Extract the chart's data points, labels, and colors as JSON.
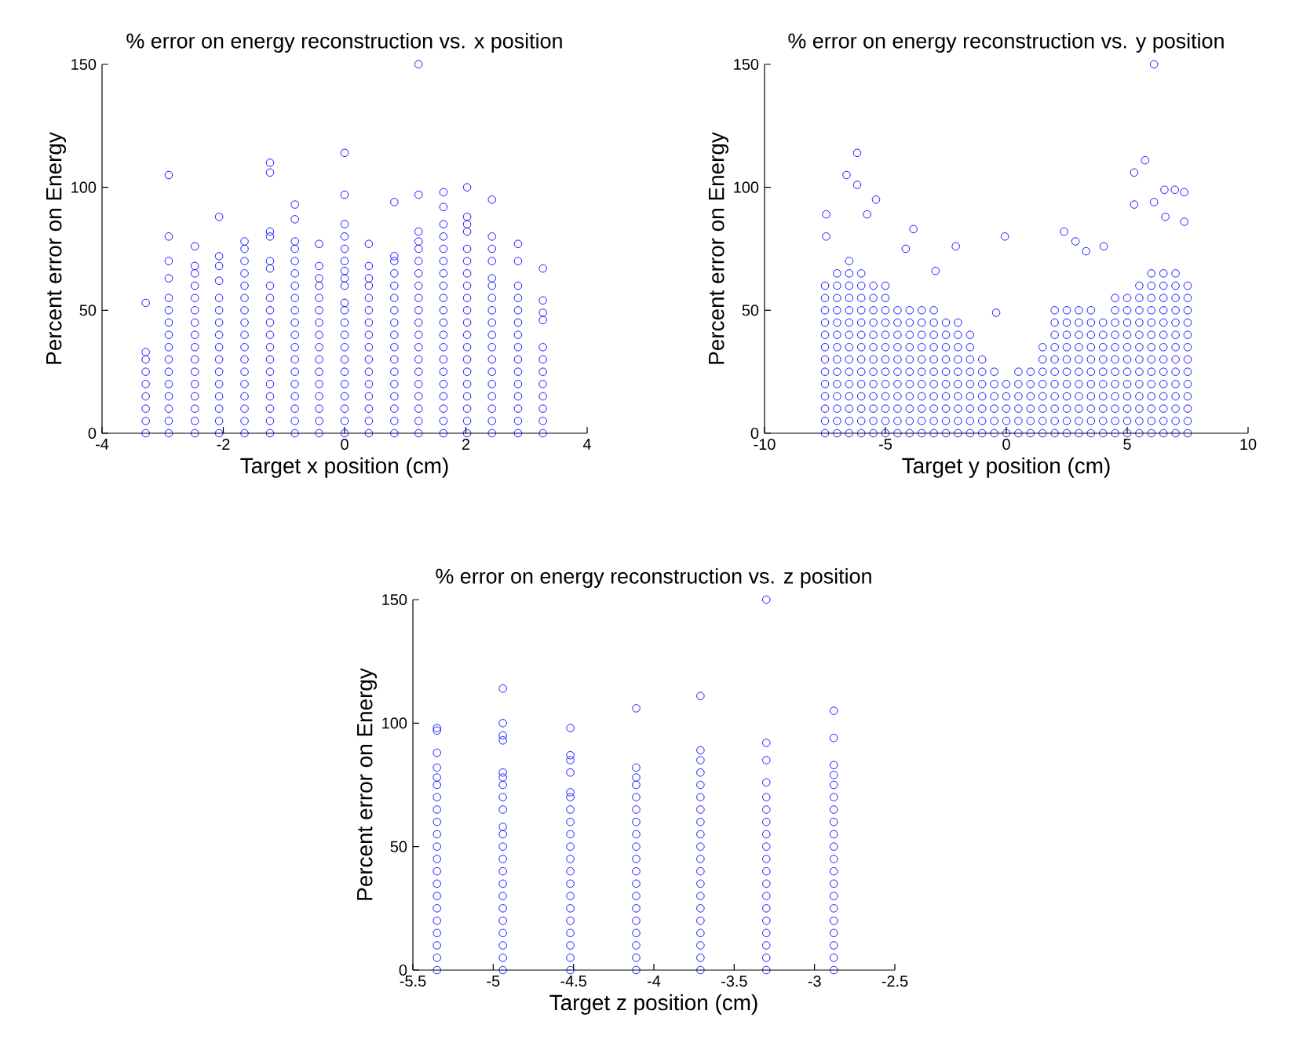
{
  "chart_data": [
    {
      "type": "scatter",
      "title": "% error on energy reconstruction vs. x position",
      "xlabel": "Target x position (cm)",
      "ylabel": "Percent error on Energy",
      "xlim": [
        -4,
        4
      ],
      "ylim": [
        0,
        150
      ],
      "xticks": [
        -4,
        -2,
        0,
        2,
        4
      ],
      "yticks": [
        0,
        50,
        100,
        150
      ],
      "marker": "circle",
      "series": [
        {
          "color": "#0000ff",
          "x": [
            -3.28,
            -3.28,
            -3.28,
            -3.28,
            -3.28,
            -3.28,
            -3.28,
            -3.28,
            -3.28
          ],
          "values": [
            0,
            5,
            10,
            15,
            20,
            25,
            30,
            33,
            53
          ]
        },
        {
          "color": "#0000ff",
          "x": [
            -2.9,
            -2.9,
            -2.9,
            -2.9,
            -2.9,
            -2.9,
            -2.9,
            -2.9,
            -2.9,
            -2.9,
            -2.9,
            -2.9,
            -2.9,
            -2.9,
            -2.9,
            -2.9
          ],
          "values": [
            0,
            5,
            10,
            15,
            20,
            25,
            30,
            35,
            40,
            45,
            50,
            55,
            63,
            70,
            80,
            105
          ]
        },
        {
          "color": "#0000ff",
          "x": [
            -2.47,
            -2.47,
            -2.47,
            -2.47,
            -2.47,
            -2.47,
            -2.47,
            -2.47,
            -2.47,
            -2.47,
            -2.47,
            -2.47,
            -2.47,
            -2.47,
            -2.47,
            -2.47
          ],
          "values": [
            0,
            5,
            10,
            15,
            20,
            25,
            30,
            35,
            40,
            45,
            50,
            55,
            60,
            65,
            68,
            76
          ]
        },
        {
          "color": "#0000ff",
          "x": [
            -2.07,
            -2.07,
            -2.07,
            -2.07,
            -2.07,
            -2.07,
            -2.07,
            -2.07,
            -2.07,
            -2.07,
            -2.07,
            -2.07,
            -2.07,
            -2.07,
            -2.07,
            -2.07
          ],
          "values": [
            0,
            5,
            10,
            15,
            20,
            25,
            30,
            35,
            40,
            45,
            50,
            55,
            62,
            68,
            72,
            88
          ]
        },
        {
          "color": "#0000ff",
          "x": [
            -1.65,
            -1.65,
            -1.65,
            -1.65,
            -1.65,
            -1.65,
            -1.65,
            -1.65,
            -1.65,
            -1.65,
            -1.65,
            -1.65,
            -1.65,
            -1.65,
            -1.65,
            -1.65,
            -1.65
          ],
          "values": [
            0,
            5,
            10,
            15,
            20,
            25,
            30,
            35,
            40,
            45,
            50,
            55,
            60,
            65,
            70,
            75,
            78
          ]
        },
        {
          "color": "#0000ff",
          "x": [
            -1.23,
            -1.23,
            -1.23,
            -1.23,
            -1.23,
            -1.23,
            -1.23,
            -1.23,
            -1.23,
            -1.23,
            -1.23,
            -1.23,
            -1.23,
            -1.23,
            -1.23,
            -1.23,
            -1.23,
            -1.23,
            -1.23
          ],
          "values": [
            0,
            5,
            10,
            15,
            20,
            25,
            30,
            35,
            40,
            45,
            50,
            55,
            60,
            67,
            70,
            80,
            82,
            106,
            110
          ]
        },
        {
          "color": "#0000ff",
          "x": [
            -0.82,
            -0.82,
            -0.82,
            -0.82,
            -0.82,
            -0.82,
            -0.82,
            -0.82,
            -0.82,
            -0.82,
            -0.82,
            -0.82,
            -0.82,
            -0.82,
            -0.82,
            -0.82,
            -0.82,
            -0.82,
            -0.82
          ],
          "values": [
            0,
            5,
            10,
            15,
            20,
            25,
            30,
            35,
            40,
            45,
            50,
            55,
            60,
            65,
            70,
            75,
            78,
            87,
            93
          ]
        },
        {
          "color": "#0000ff",
          "x": [
            -0.42,
            -0.42,
            -0.42,
            -0.42,
            -0.42,
            -0.42,
            -0.42,
            -0.42,
            -0.42,
            -0.42,
            -0.42,
            -0.42,
            -0.42,
            -0.42,
            -0.42,
            -0.42
          ],
          "values": [
            0,
            5,
            10,
            15,
            20,
            25,
            30,
            35,
            40,
            45,
            50,
            55,
            60,
            63,
            68,
            77
          ]
        },
        {
          "color": "#0000ff",
          "x": [
            0,
            0,
            0,
            0,
            0,
            0,
            0,
            0,
            0,
            0,
            0,
            0,
            0,
            0,
            0,
            0,
            0,
            0,
            0,
            0,
            0
          ],
          "values": [
            0,
            5,
            10,
            15,
            20,
            25,
            30,
            35,
            40,
            45,
            50,
            53,
            60,
            63,
            66,
            70,
            75,
            80,
            85,
            97,
            114
          ]
        },
        {
          "color": "#0000ff",
          "x": [
            0.4,
            0.4,
            0.4,
            0.4,
            0.4,
            0.4,
            0.4,
            0.4,
            0.4,
            0.4,
            0.4,
            0.4,
            0.4,
            0.4,
            0.4,
            0.4
          ],
          "values": [
            0,
            5,
            10,
            15,
            20,
            25,
            30,
            35,
            40,
            45,
            50,
            55,
            60,
            63,
            68,
            77
          ]
        },
        {
          "color": "#0000ff",
          "x": [
            0.82,
            0.82,
            0.82,
            0.82,
            0.82,
            0.82,
            0.82,
            0.82,
            0.82,
            0.82,
            0.82,
            0.82,
            0.82,
            0.82,
            0.82,
            0.82,
            0.82
          ],
          "values": [
            0,
            5,
            10,
            15,
            20,
            25,
            30,
            35,
            40,
            45,
            50,
            55,
            60,
            65,
            70,
            72,
            94
          ]
        },
        {
          "color": "#0000ff",
          "x": [
            1.22,
            1.22,
            1.22,
            1.22,
            1.22,
            1.22,
            1.22,
            1.22,
            1.22,
            1.22,
            1.22,
            1.22,
            1.22,
            1.22,
            1.22,
            1.22,
            1.22,
            1.22,
            1.22,
            1.22
          ],
          "values": [
            0,
            5,
            10,
            15,
            20,
            25,
            30,
            35,
            40,
            45,
            50,
            55,
            60,
            65,
            70,
            75,
            78,
            82,
            97,
            150
          ]
        },
        {
          "color": "#0000ff",
          "x": [
            1.63,
            1.63,
            1.63,
            1.63,
            1.63,
            1.63,
            1.63,
            1.63,
            1.63,
            1.63,
            1.63,
            1.63,
            1.63,
            1.63,
            1.63,
            1.63,
            1.63,
            1.63,
            1.63,
            1.63
          ],
          "values": [
            0,
            5,
            10,
            15,
            20,
            25,
            30,
            35,
            40,
            45,
            50,
            55,
            60,
            65,
            70,
            75,
            80,
            85,
            92,
            98
          ]
        },
        {
          "color": "#0000ff",
          "x": [
            2.02,
            2.02,
            2.02,
            2.02,
            2.02,
            2.02,
            2.02,
            2.02,
            2.02,
            2.02,
            2.02,
            2.02,
            2.02,
            2.02,
            2.02,
            2.02,
            2.02,
            2.02,
            2.02,
            2.02
          ],
          "values": [
            0,
            5,
            10,
            15,
            20,
            25,
            30,
            35,
            40,
            45,
            50,
            55,
            60,
            65,
            70,
            75,
            82,
            85,
            88,
            100
          ]
        },
        {
          "color": "#0000ff",
          "x": [
            2.43,
            2.43,
            2.43,
            2.43,
            2.43,
            2.43,
            2.43,
            2.43,
            2.43,
            2.43,
            2.43,
            2.43,
            2.43,
            2.43,
            2.43,
            2.43,
            2.43,
            2.43
          ],
          "values": [
            0,
            5,
            10,
            15,
            20,
            25,
            30,
            35,
            40,
            45,
            50,
            55,
            60,
            63,
            70,
            75,
            80,
            95
          ]
        },
        {
          "color": "#0000ff",
          "x": [
            2.86,
            2.86,
            2.86,
            2.86,
            2.86,
            2.86,
            2.86,
            2.86,
            2.86,
            2.86,
            2.86,
            2.86,
            2.86,
            2.86,
            2.86
          ],
          "values": [
            0,
            5,
            10,
            15,
            20,
            25,
            30,
            35,
            40,
            45,
            50,
            55,
            60,
            70,
            77
          ]
        },
        {
          "color": "#0000ff",
          "x": [
            3.27,
            3.27,
            3.27,
            3.27,
            3.27,
            3.27,
            3.27,
            3.27,
            3.27,
            3.27,
            3.27,
            3.27
          ],
          "values": [
            0,
            5,
            10,
            15,
            20,
            25,
            30,
            35,
            46,
            49,
            54,
            67
          ]
        }
      ]
    },
    {
      "type": "scatter",
      "title": "% error on energy reconstruction vs. y position",
      "xlabel": "Target y position (cm)",
      "ylabel": "Percent error on Energy",
      "xlim": [
        -10,
        10
      ],
      "ylim": [
        0,
        150
      ],
      "xticks": [
        -10,
        -5,
        0,
        5,
        10
      ],
      "yticks": [
        0,
        50,
        100,
        150
      ],
      "marker": "circle",
      "series": [
        {
          "color": "#0000ff",
          "x": [
            -7.5,
            -7.5,
            -7.5,
            -7.5,
            -7.5,
            -7.5,
            -7.5,
            -7.5,
            -7.5,
            -7.5,
            -7.5,
            -7.5,
            -7.5
          ],
          "values": [
            0,
            5,
            10,
            15,
            20,
            25,
            30,
            35,
            40,
            45,
            50,
            55,
            60
          ]
        },
        {
          "color": "#0000ff",
          "x": [
            -7,
            -7,
            -7,
            -7,
            -7,
            -7,
            -7,
            -7,
            -7,
            -7,
            -7,
            -7,
            -7,
            -7
          ],
          "values": [
            0,
            5,
            10,
            15,
            20,
            25,
            30,
            35,
            40,
            45,
            50,
            55,
            60,
            65
          ]
        },
        {
          "color": "#0000ff",
          "x": [
            -6.5,
            -6.5,
            -6.5,
            -6.5,
            -6.5,
            -6.5,
            -6.5,
            -6.5,
            -6.5,
            -6.5,
            -6.5,
            -6.5,
            -6.5,
            -6.5,
            -6.5
          ],
          "values": [
            0,
            5,
            10,
            15,
            20,
            25,
            30,
            35,
            40,
            45,
            50,
            55,
            60,
            65,
            70
          ]
        },
        {
          "color": "#0000ff",
          "x": [
            -6,
            -6,
            -6,
            -6,
            -6,
            -6,
            -6,
            -6,
            -6,
            -6,
            -6,
            -6,
            -6,
            -6
          ],
          "values": [
            0,
            5,
            10,
            15,
            20,
            25,
            30,
            35,
            40,
            45,
            50,
            55,
            60,
            65
          ]
        },
        {
          "color": "#0000ff",
          "x": [
            -5.5,
            -5.5,
            -5.5,
            -5.5,
            -5.5,
            -5.5,
            -5.5,
            -5.5,
            -5.5,
            -5.5,
            -5.5,
            -5.5,
            -5.5
          ],
          "values": [
            0,
            5,
            10,
            15,
            20,
            25,
            30,
            35,
            40,
            45,
            50,
            55,
            60
          ]
        },
        {
          "color": "#0000ff",
          "x": [
            -5,
            -5,
            -5,
            -5,
            -5,
            -5,
            -5,
            -5,
            -5,
            -5,
            -5,
            -5,
            -5
          ],
          "values": [
            0,
            5,
            10,
            15,
            20,
            25,
            30,
            35,
            40,
            45,
            50,
            55,
            60
          ]
        },
        {
          "color": "#0000ff",
          "x": [
            -4.5,
            -4.5,
            -4.5,
            -4.5,
            -4.5,
            -4.5,
            -4.5,
            -4.5,
            -4.5,
            -4.5,
            -4.5
          ],
          "values": [
            0,
            5,
            10,
            15,
            20,
            25,
            30,
            35,
            40,
            45,
            50
          ]
        },
        {
          "color": "#0000ff",
          "x": [
            -4,
            -4,
            -4,
            -4,
            -4,
            -4,
            -4,
            -4,
            -4,
            -4,
            -4
          ],
          "values": [
            0,
            5,
            10,
            15,
            20,
            25,
            30,
            35,
            40,
            45,
            50
          ]
        },
        {
          "color": "#0000ff",
          "x": [
            -3.5,
            -3.5,
            -3.5,
            -3.5,
            -3.5,
            -3.5,
            -3.5,
            -3.5,
            -3.5,
            -3.5,
            -3.5
          ],
          "values": [
            0,
            5,
            10,
            15,
            20,
            25,
            30,
            35,
            40,
            45,
            50
          ]
        },
        {
          "color": "#0000ff",
          "x": [
            -3,
            -3,
            -3,
            -3,
            -3,
            -3,
            -3,
            -3,
            -3,
            -3,
            -3
          ],
          "values": [
            0,
            5,
            10,
            15,
            20,
            25,
            30,
            35,
            40,
            45,
            50
          ]
        },
        {
          "color": "#0000ff",
          "x": [
            -2.5,
            -2.5,
            -2.5,
            -2.5,
            -2.5,
            -2.5,
            -2.5,
            -2.5,
            -2.5,
            -2.5
          ],
          "values": [
            0,
            5,
            10,
            15,
            20,
            25,
            30,
            35,
            40,
            45
          ]
        },
        {
          "color": "#0000ff",
          "x": [
            -2,
            -2,
            -2,
            -2,
            -2,
            -2,
            -2,
            -2,
            -2,
            -2
          ],
          "values": [
            0,
            5,
            10,
            15,
            20,
            25,
            30,
            35,
            40,
            45
          ]
        },
        {
          "color": "#0000ff",
          "x": [
            -1.5,
            -1.5,
            -1.5,
            -1.5,
            -1.5,
            -1.5,
            -1.5,
            -1.5,
            -1.5
          ],
          "values": [
            0,
            5,
            10,
            15,
            20,
            25,
            30,
            35,
            40
          ]
        },
        {
          "color": "#0000ff",
          "x": [
            -1,
            -1,
            -1,
            -1,
            -1,
            -1,
            -1
          ],
          "values": [
            0,
            5,
            10,
            15,
            20,
            25,
            30
          ]
        },
        {
          "color": "#0000ff",
          "x": [
            -0.5,
            -0.5,
            -0.5,
            -0.5,
            -0.5,
            -0.5
          ],
          "values": [
            0,
            5,
            10,
            15,
            20,
            25
          ]
        },
        {
          "color": "#0000ff",
          "x": [
            0,
            0,
            0,
            0,
            0
          ],
          "values": [
            0,
            5,
            10,
            15,
            20
          ]
        },
        {
          "color": "#0000ff",
          "x": [
            0.5,
            0.5,
            0.5,
            0.5,
            0.5,
            0.5
          ],
          "values": [
            0,
            5,
            10,
            15,
            20,
            25
          ]
        },
        {
          "color": "#0000ff",
          "x": [
            1,
            1,
            1,
            1,
            1,
            1
          ],
          "values": [
            0,
            5,
            10,
            15,
            20,
            25
          ]
        },
        {
          "color": "#0000ff",
          "x": [
            1.5,
            1.5,
            1.5,
            1.5,
            1.5,
            1.5,
            1.5,
            1.5
          ],
          "values": [
            0,
            5,
            10,
            15,
            20,
            25,
            30,
            35
          ]
        },
        {
          "color": "#0000ff",
          "x": [
            2,
            2,
            2,
            2,
            2,
            2,
            2,
            2,
            2,
            2,
            2
          ],
          "values": [
            0,
            5,
            10,
            15,
            20,
            25,
            30,
            35,
            40,
            45,
            50
          ]
        },
        {
          "color": "#0000ff",
          "x": [
            2.5,
            2.5,
            2.5,
            2.5,
            2.5,
            2.5,
            2.5,
            2.5,
            2.5,
            2.5,
            2.5
          ],
          "values": [
            0,
            5,
            10,
            15,
            20,
            25,
            30,
            35,
            40,
            45,
            50
          ]
        },
        {
          "color": "#0000ff",
          "x": [
            3,
            3,
            3,
            3,
            3,
            3,
            3,
            3,
            3,
            3,
            3
          ],
          "values": [
            0,
            5,
            10,
            15,
            20,
            25,
            30,
            35,
            40,
            45,
            50
          ]
        },
        {
          "color": "#0000ff",
          "x": [
            3.5,
            3.5,
            3.5,
            3.5,
            3.5,
            3.5,
            3.5,
            3.5,
            3.5,
            3.5,
            3.5
          ],
          "values": [
            0,
            5,
            10,
            15,
            20,
            25,
            30,
            35,
            40,
            45,
            50
          ]
        },
        {
          "color": "#0000ff",
          "x": [
            4,
            4,
            4,
            4,
            4,
            4,
            4,
            4,
            4,
            4
          ],
          "values": [
            0,
            5,
            10,
            15,
            20,
            25,
            30,
            35,
            40,
            45
          ]
        },
        {
          "color": "#0000ff",
          "x": [
            4.5,
            4.5,
            4.5,
            4.5,
            4.5,
            4.5,
            4.5,
            4.5,
            4.5,
            4.5,
            4.5,
            4.5
          ],
          "values": [
            0,
            5,
            10,
            15,
            20,
            25,
            30,
            35,
            40,
            45,
            50,
            55
          ]
        },
        {
          "color": "#0000ff",
          "x": [
            5,
            5,
            5,
            5,
            5,
            5,
            5,
            5,
            5,
            5,
            5,
            5
          ],
          "values": [
            0,
            5,
            10,
            15,
            20,
            25,
            30,
            35,
            40,
            45,
            50,
            55
          ]
        },
        {
          "color": "#0000ff",
          "x": [
            5.5,
            5.5,
            5.5,
            5.5,
            5.5,
            5.5,
            5.5,
            5.5,
            5.5,
            5.5,
            5.5,
            5.5,
            5.5
          ],
          "values": [
            0,
            5,
            10,
            15,
            20,
            25,
            30,
            35,
            40,
            45,
            50,
            55,
            60
          ]
        },
        {
          "color": "#0000ff",
          "x": [
            6,
            6,
            6,
            6,
            6,
            6,
            6,
            6,
            6,
            6,
            6,
            6,
            6,
            6
          ],
          "values": [
            0,
            5,
            10,
            15,
            20,
            25,
            30,
            35,
            40,
            45,
            50,
            55,
            60,
            65
          ]
        },
        {
          "color": "#0000ff",
          "x": [
            6.5,
            6.5,
            6.5,
            6.5,
            6.5,
            6.5,
            6.5,
            6.5,
            6.5,
            6.5,
            6.5,
            6.5,
            6.5,
            6.5
          ],
          "values": [
            0,
            5,
            10,
            15,
            20,
            25,
            30,
            35,
            40,
            45,
            50,
            55,
            60,
            65
          ]
        },
        {
          "color": "#0000ff",
          "x": [
            7,
            7,
            7,
            7,
            7,
            7,
            7,
            7,
            7,
            7,
            7,
            7,
            7,
            7
          ],
          "values": [
            0,
            5,
            10,
            15,
            20,
            25,
            30,
            35,
            40,
            45,
            50,
            55,
            60,
            65
          ]
        },
        {
          "color": "#0000ff",
          "x": [
            7.5,
            7.5,
            7.5,
            7.5,
            7.5,
            7.5,
            7.5,
            7.5,
            7.5,
            7.5,
            7.5,
            7.5,
            7.5
          ],
          "values": [
            0,
            5,
            10,
            15,
            20,
            25,
            30,
            35,
            40,
            45,
            50,
            55,
            60
          ]
        },
        {
          "color": "#0000ff",
          "x": [
            -7.45,
            -7.45,
            -6.61,
            -6.17,
            -6.17,
            -5.39,
            -5.76,
            -3.84,
            -4.16,
            -2.09,
            -0.42,
            -0.06,
            -2.93,
            2.39,
            2.86,
            3.3,
            4.03,
            5.29,
            5.74,
            5.29,
            6.11,
            6.11,
            6.54,
            6.97,
            7.36,
            7.36,
            6.58
          ],
          "values": [
            89,
            80,
            105,
            114,
            101,
            95,
            89,
            83,
            75,
            76,
            49,
            80,
            66,
            82,
            78,
            74,
            76,
            106,
            111,
            93,
            150,
            94,
            99,
            99,
            98,
            86,
            88
          ]
        }
      ]
    },
    {
      "type": "scatter",
      "title": "% error on energy reconstruction vs. z position",
      "xlabel": "Target z position (cm)",
      "ylabel": "Percent error on Energy",
      "xlim": [
        -5.5,
        -2.5
      ],
      "ylim": [
        0,
        150
      ],
      "xticks": [
        -5.5,
        -5,
        -4.5,
        -4,
        -3.5,
        -3,
        -2.5
      ],
      "yticks": [
        0,
        50,
        100,
        150
      ],
      "marker": "circle",
      "series": [
        {
          "color": "#0000ff",
          "x": [
            -5.35,
            -5.35,
            -5.35,
            -5.35,
            -5.35,
            -5.35,
            -5.35,
            -5.35,
            -5.35,
            -5.35,
            -5.35,
            -5.35,
            -5.35,
            -5.35,
            -5.35,
            -5.35,
            -5.35,
            -5.35,
            -5.35,
            -5.35,
            -5.35
          ],
          "values": [
            0,
            5,
            10,
            15,
            20,
            25,
            30,
            35,
            40,
            45,
            50,
            55,
            60,
            65,
            70,
            75,
            78,
            82,
            88,
            97,
            98
          ]
        },
        {
          "color": "#0000ff",
          "x": [
            -4.94,
            -4.94,
            -4.94,
            -4.94,
            -4.94,
            -4.94,
            -4.94,
            -4.94,
            -4.94,
            -4.94,
            -4.94,
            -4.94,
            -4.94,
            -4.94,
            -4.94,
            -4.94,
            -4.94,
            -4.94,
            -4.94,
            -4.94,
            -4.94,
            -4.94
          ],
          "values": [
            0,
            5,
            10,
            15,
            20,
            25,
            30,
            35,
            40,
            45,
            50,
            55,
            58,
            65,
            70,
            75,
            78,
            80,
            93,
            95,
            100,
            114
          ]
        },
        {
          "color": "#0000ff",
          "x": [
            -4.52,
            -4.52,
            -4.52,
            -4.52,
            -4.52,
            -4.52,
            -4.52,
            -4.52,
            -4.52,
            -4.52,
            -4.52,
            -4.52,
            -4.52,
            -4.52,
            -4.52,
            -4.52,
            -4.52,
            -4.52,
            -4.52,
            -4.52
          ],
          "values": [
            0,
            5,
            10,
            15,
            20,
            25,
            30,
            35,
            40,
            45,
            50,
            55,
            60,
            65,
            70,
            72,
            80,
            85,
            87,
            98
          ]
        },
        {
          "color": "#0000ff",
          "x": [
            -4.11,
            -4.11,
            -4.11,
            -4.11,
            -4.11,
            -4.11,
            -4.11,
            -4.11,
            -4.11,
            -4.11,
            -4.11,
            -4.11,
            -4.11,
            -4.11,
            -4.11,
            -4.11,
            -4.11,
            -4.11,
            -4.11
          ],
          "values": [
            0,
            5,
            10,
            15,
            20,
            25,
            30,
            35,
            40,
            45,
            50,
            55,
            60,
            65,
            70,
            75,
            78,
            82,
            106
          ]
        },
        {
          "color": "#0000ff",
          "x": [
            -3.71,
            -3.71,
            -3.71,
            -3.71,
            -3.71,
            -3.71,
            -3.71,
            -3.71,
            -3.71,
            -3.71,
            -3.71,
            -3.71,
            -3.71,
            -3.71,
            -3.71,
            -3.71,
            -3.71,
            -3.71,
            -3.71,
            -3.71
          ],
          "values": [
            0,
            5,
            10,
            15,
            20,
            25,
            30,
            35,
            40,
            45,
            50,
            55,
            60,
            65,
            70,
            75,
            80,
            85,
            89,
            111
          ]
        },
        {
          "color": "#0000ff",
          "x": [
            -3.3,
            -3.3,
            -3.3,
            -3.3,
            -3.3,
            -3.3,
            -3.3,
            -3.3,
            -3.3,
            -3.3,
            -3.3,
            -3.3,
            -3.3,
            -3.3,
            -3.3,
            -3.3,
            -3.3,
            -3.3,
            -3.3
          ],
          "values": [
            0,
            5,
            10,
            15,
            20,
            25,
            30,
            35,
            40,
            45,
            50,
            55,
            60,
            65,
            70,
            76,
            85,
            92,
            150
          ]
        },
        {
          "color": "#0000ff",
          "x": [
            -2.88,
            -2.88,
            -2.88,
            -2.88,
            -2.88,
            -2.88,
            -2.88,
            -2.88,
            -2.88,
            -2.88,
            -2.88,
            -2.88,
            -2.88,
            -2.88,
            -2.88,
            -2.88,
            -2.88,
            -2.88,
            -2.88,
            -2.88
          ],
          "values": [
            0,
            5,
            10,
            15,
            20,
            25,
            30,
            35,
            40,
            45,
            50,
            55,
            60,
            65,
            70,
            75,
            79,
            83,
            94,
            105
          ]
        }
      ]
    }
  ]
}
